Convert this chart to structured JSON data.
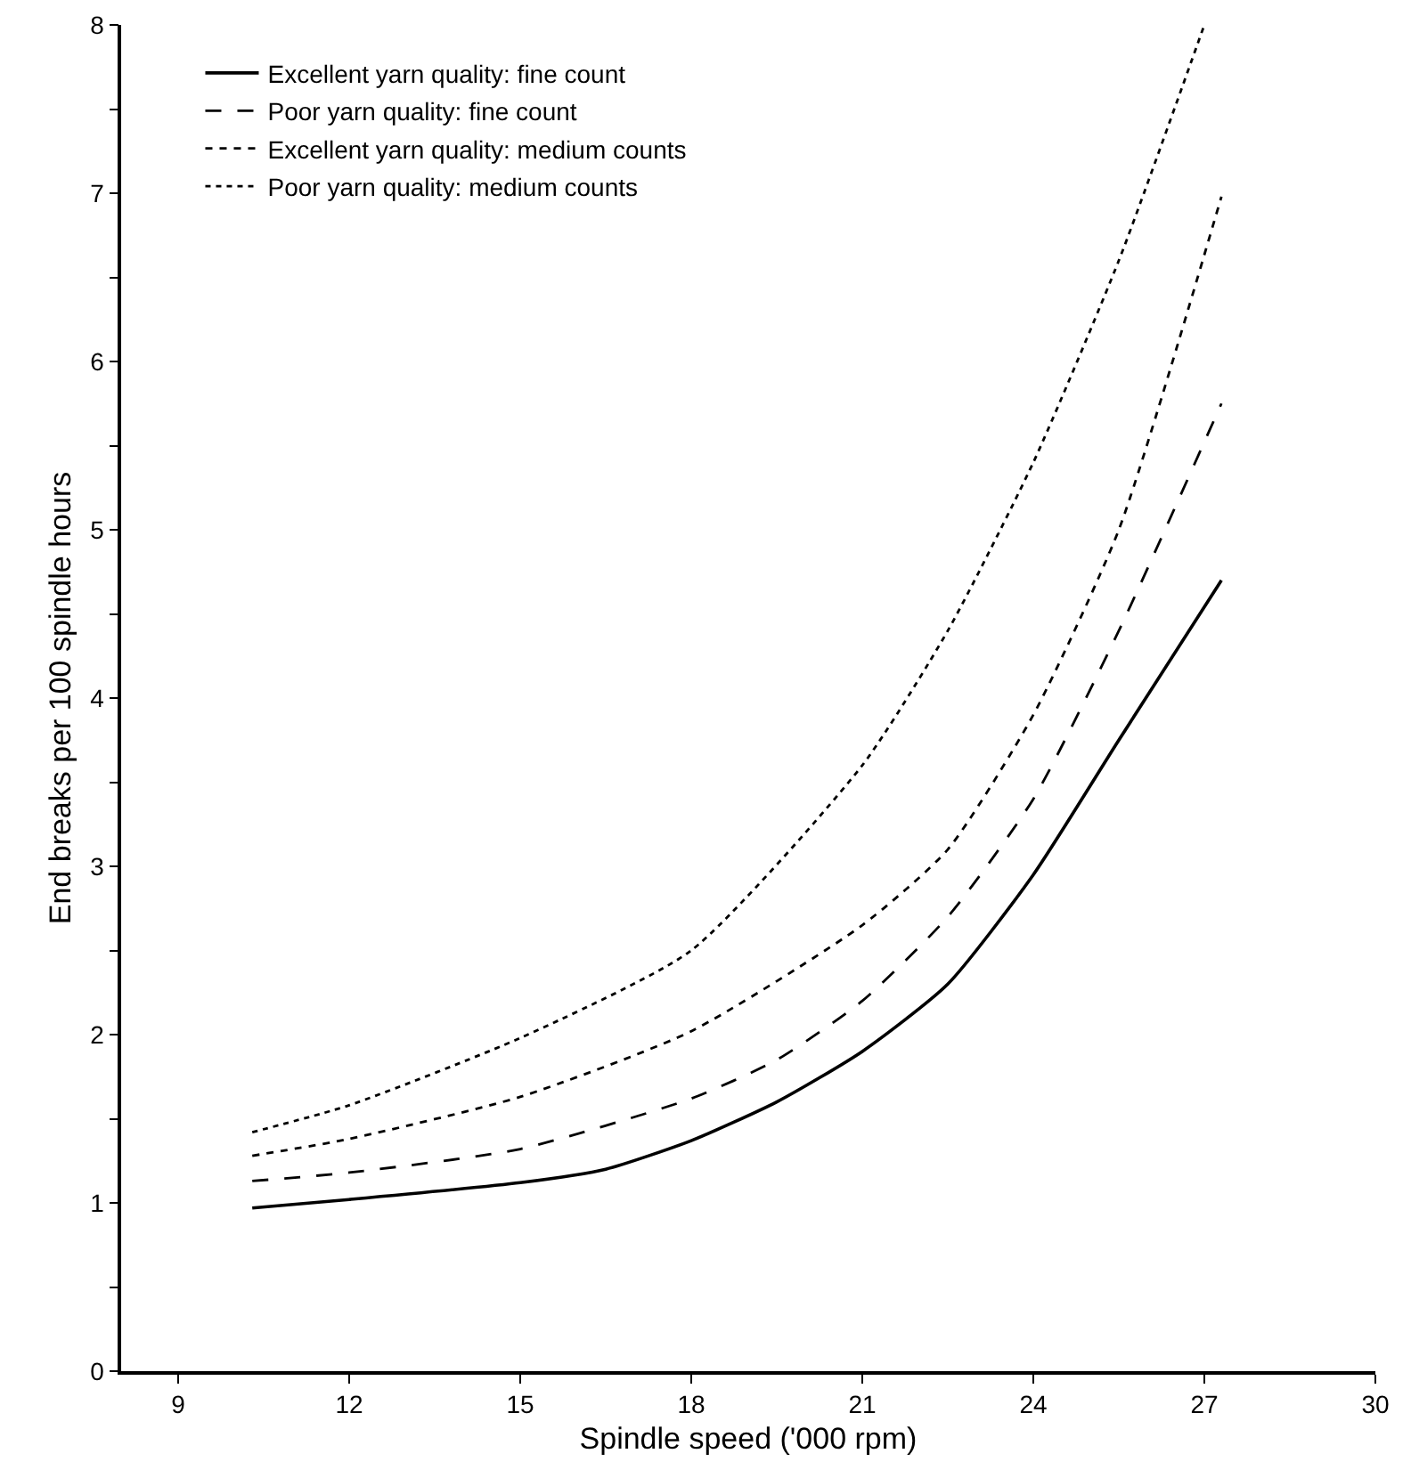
{
  "chart_data": {
    "type": "line",
    "xlabel": "Spindle speed ('000 rpm)",
    "ylabel": "End breaks per 100 spindle hours",
    "xlim": [
      8,
      30
    ],
    "xticks": [
      9,
      12,
      15,
      18,
      21,
      24,
      27,
      30
    ],
    "ylim": [
      0,
      8
    ],
    "yticks": [
      0,
      {
        "value": 0.5,
        "label": null
      },
      1,
      {
        "value": 1.5,
        "label": null
      },
      2,
      {
        "value": 2.5,
        "label": null
      },
      3,
      {
        "value": 3.5,
        "label": null
      },
      4,
      {
        "value": 4.5,
        "label": null
      },
      5,
      {
        "value": 5.5,
        "label": null
      },
      6,
      {
        "value": 6.5,
        "label": null
      },
      7,
      {
        "value": 7.5,
        "label": null
      },
      8
    ],
    "grid": false,
    "legend": "top left",
    "marker": "none",
    "series": [
      {
        "name": "Excellent yarn quality: fine count",
        "color": "#000000",
        "line_style": "solid",
        "x": [
          10.3,
          12,
          15,
          16.5,
          18,
          19.5,
          21,
          22.5,
          24,
          25.5,
          27.3
        ],
        "values": [
          0.97,
          1.02,
          1.12,
          1.2,
          1.37,
          1.6,
          1.9,
          2.3,
          2.95,
          3.75,
          4.7
        ]
      },
      {
        "name": "Poor yarn quality: fine count",
        "color": "#000000",
        "line_style": "dashed",
        "x": [
          10.3,
          12,
          15,
          18,
          19.5,
          21,
          22.5,
          24,
          25.5,
          27.3
        ],
        "values": [
          1.13,
          1.18,
          1.32,
          1.62,
          1.85,
          2.2,
          2.7,
          3.4,
          4.4,
          5.75
        ]
      },
      {
        "name": "Excellent yarn quality: medium counts",
        "color": "#000000",
        "line_style": "dashed_short",
        "x": [
          10.3,
          12,
          15,
          18,
          21,
          22.5,
          24,
          25.5,
          27.3
        ],
        "values": [
          1.28,
          1.38,
          1.63,
          2.02,
          2.65,
          3.1,
          3.9,
          5.0,
          6.98
        ]
      },
      {
        "name": "Poor yarn quality: medium counts",
        "color": "#000000",
        "line_style": "dotted",
        "x": [
          10.3,
          12,
          15,
          18,
          21,
          22.5,
          24,
          25.5,
          27
        ],
        "values": [
          1.42,
          1.58,
          1.98,
          2.5,
          3.6,
          4.4,
          5.4,
          6.6,
          8.0
        ]
      }
    ]
  }
}
